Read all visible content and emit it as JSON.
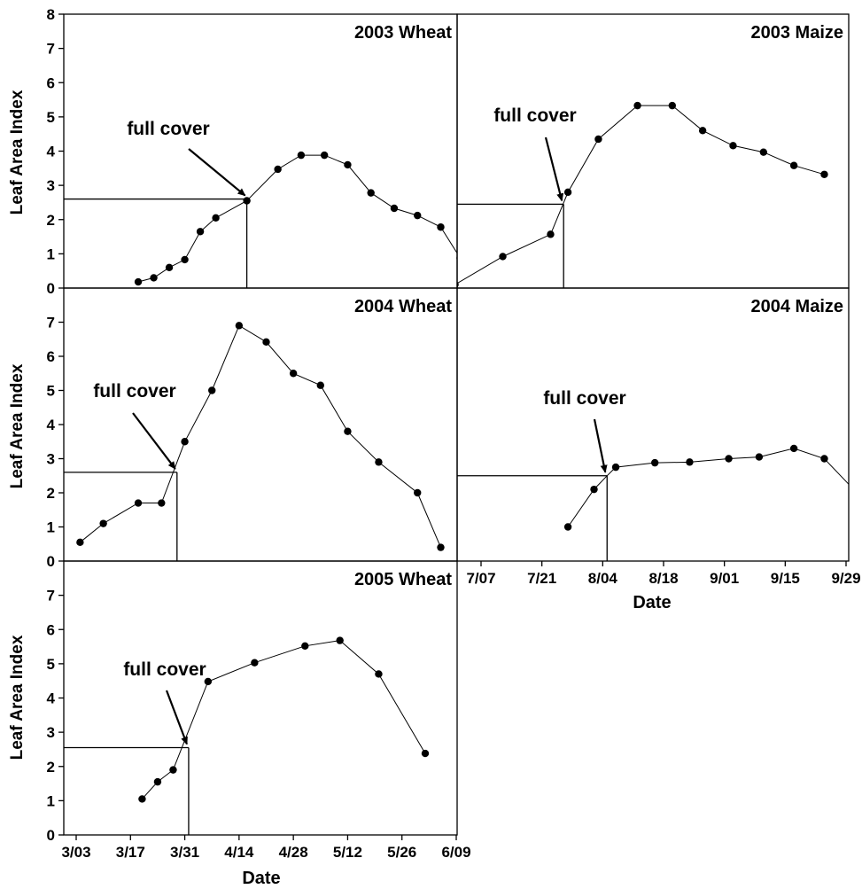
{
  "figure": {
    "ylabel": "Leaf Area Index",
    "xlabel": "Date"
  },
  "chart_data": [
    {
      "id": "wheat2003",
      "type": "line",
      "title": "2003 Wheat",
      "ylabel": "Leaf Area Index",
      "ylim": [
        0,
        8
      ],
      "yticks": [
        0,
        1,
        2,
        3,
        4,
        5,
        6,
        7,
        8
      ],
      "x_axis": "3/03 – 6/09",
      "annotation": "full cover",
      "full_cover": {
        "x": "4/16",
        "y": 2.6
      },
      "series": [
        {
          "points": [
            [
              "3/19",
              0.18
            ],
            [
              "3/23",
              0.3
            ],
            [
              "3/27",
              0.6
            ],
            [
              "3/31",
              0.83
            ],
            [
              "4/04",
              1.65
            ],
            [
              "4/08",
              2.05
            ],
            [
              "4/16",
              2.55
            ],
            [
              "4/24",
              3.47
            ],
            [
              "4/30",
              3.88
            ],
            [
              "5/06",
              3.88
            ],
            [
              "5/12",
              3.6
            ],
            [
              "5/18",
              2.78
            ],
            [
              "5/24",
              2.33
            ],
            [
              "5/30",
              2.12
            ],
            [
              "6/05",
              1.78
            ],
            [
              "6/10",
              0.88
            ]
          ]
        }
      ]
    },
    {
      "id": "maize2003",
      "type": "line",
      "title": "2003 Maize",
      "ylim": [
        0,
        8
      ],
      "x_axis": "6/30 – 9/30",
      "annotation": "full cover",
      "full_cover": {
        "x": "7/26",
        "y": 2.45
      },
      "series": [
        {
          "points": [
            [
              "7/01",
              0.1
            ],
            [
              "7/12",
              0.92
            ],
            [
              "7/23",
              1.57
            ],
            [
              "7/27",
              2.8
            ],
            [
              "8/03",
              4.35
            ],
            [
              "8/12",
              5.33
            ],
            [
              "8/20",
              5.33
            ],
            [
              "8/27",
              4.6
            ],
            [
              "9/03",
              4.16
            ],
            [
              "9/10",
              3.97
            ],
            [
              "9/17",
              3.58
            ],
            [
              "9/24",
              3.32
            ]
          ]
        }
      ]
    },
    {
      "id": "wheat2004",
      "type": "line",
      "title": "2004 Wheat",
      "ylabel": "Leaf Area Index",
      "ylim": [
        0,
        8
      ],
      "yticks": [
        0,
        1,
        2,
        3,
        4,
        5,
        6,
        7
      ],
      "x_axis": "3/03 – 6/09",
      "annotation": "full cover",
      "full_cover": {
        "x": "3/29",
        "y": 2.6
      },
      "series": [
        {
          "points": [
            [
              "3/04",
              0.55
            ],
            [
              "3/10",
              1.1
            ],
            [
              "3/19",
              1.7
            ],
            [
              "3/25",
              1.7
            ],
            [
              "3/31",
              3.5
            ],
            [
              "4/07",
              5.0
            ],
            [
              "4/14",
              6.9
            ],
            [
              "4/21",
              6.42
            ],
            [
              "4/28",
              5.5
            ],
            [
              "5/05",
              5.15
            ],
            [
              "5/12",
              3.8
            ],
            [
              "5/20",
              2.9
            ],
            [
              "5/30",
              2.0
            ],
            [
              "6/05",
              0.4
            ]
          ]
        }
      ]
    },
    {
      "id": "maize2004",
      "type": "line",
      "title": "2004 Maize",
      "xlabel": "Date",
      "ylim": [
        0,
        8
      ],
      "xticks": [
        "7/07",
        "7/21",
        "8/04",
        "8/18",
        "9/01",
        "9/15",
        "9/29"
      ],
      "annotation": "full cover",
      "full_cover": {
        "x": "8/05",
        "y": 2.5
      },
      "series": [
        {
          "points": [
            [
              "7/27",
              1.0
            ],
            [
              "8/02",
              2.1
            ],
            [
              "8/05",
              2.5
            ],
            [
              "8/07",
              2.75
            ],
            [
              "8/16",
              2.88
            ],
            [
              "8/24",
              2.9
            ],
            [
              "9/02",
              3.0
            ],
            [
              "9/09",
              3.05
            ],
            [
              "9/17",
              3.3
            ],
            [
              "9/24",
              3.0
            ],
            [
              "9/30",
              2.2
            ]
          ]
        }
      ]
    },
    {
      "id": "wheat2005",
      "type": "line",
      "title": "2005 Wheat",
      "ylabel": "Leaf Area Index",
      "xlabel": "Date",
      "ylim": [
        0,
        8
      ],
      "yticks": [
        0,
        1,
        2,
        3,
        4,
        5,
        6,
        7
      ],
      "xticks": [
        "3/03",
        "3/17",
        "3/31",
        "4/14",
        "4/28",
        "5/12",
        "5/26",
        "6/09"
      ],
      "annotation": "full cover",
      "full_cover": {
        "x": "4/01",
        "y": 2.55
      },
      "series": [
        {
          "points": [
            [
              "3/20",
              1.05
            ],
            [
              "3/24",
              1.55
            ],
            [
              "3/28",
              1.9
            ],
            [
              "4/06",
              4.48
            ],
            [
              "4/18",
              5.03
            ],
            [
              "5/01",
              5.52
            ],
            [
              "5/10",
              5.68
            ],
            [
              "5/20",
              4.7
            ],
            [
              "6/01",
              2.38
            ]
          ]
        }
      ]
    }
  ]
}
